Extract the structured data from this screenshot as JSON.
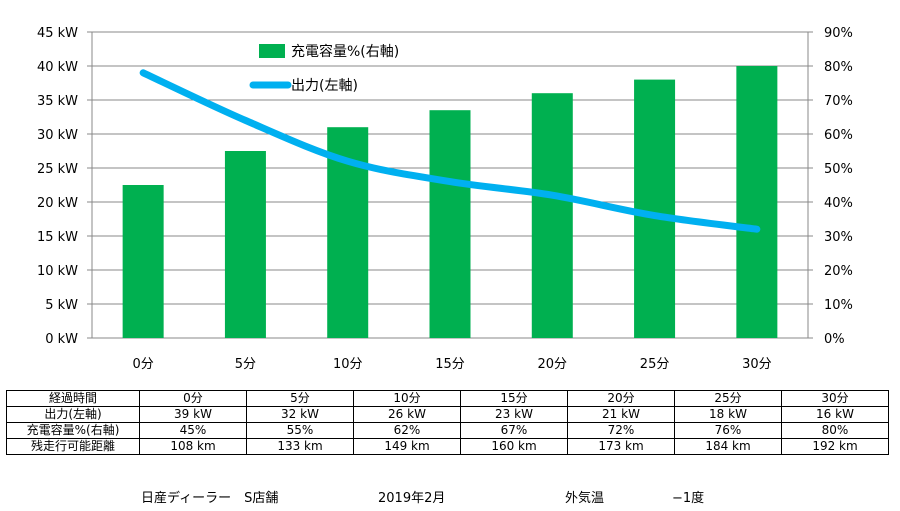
{
  "chart_data": {
    "type": "bar",
    "categories": [
      "0分",
      "5分",
      "10分",
      "15分",
      "20分",
      "25分",
      "30分"
    ],
    "series": [
      {
        "name": "充電容量%(右軸)",
        "type": "bar",
        "axis": "right",
        "values": [
          45,
          55,
          62,
          67,
          72,
          76,
          80
        ],
        "color": "#00b050"
      },
      {
        "name": "出力(左軸)",
        "type": "line",
        "axis": "left",
        "values": [
          39,
          32,
          26,
          23,
          21,
          18,
          16
        ],
        "color": "#00b0f0"
      }
    ],
    "left_axis": {
      "min": 0,
      "max": 45,
      "step": 5,
      "tick_labels": [
        "0 kW",
        "5 kW",
        "10 kW",
        "15 kW",
        "20 kW",
        "25 kW",
        "30 kW",
        "35 kW",
        "40 kW",
        "45 kW"
      ]
    },
    "right_axis": {
      "min": 0,
      "max": 90,
      "step": 10,
      "tick_labels": [
        "0%",
        "10%",
        "20%",
        "30%",
        "40%",
        "50%",
        "60%",
        "70%",
        "80%",
        "90%"
      ]
    },
    "grid": true,
    "legend_position": "top-center",
    "plot_background": "#ffffff"
  },
  "table": {
    "header_label": "経過時間",
    "columns": [
      "0分",
      "5分",
      "10分",
      "15分",
      "20分",
      "25分",
      "30分"
    ],
    "rows": [
      {
        "label": "出力(左軸)",
        "cells": [
          "39 kW",
          "32 kW",
          "26 kW",
          "23 kW",
          "21 kW",
          "18 kW",
          "16 kW"
        ]
      },
      {
        "label": "充電容量%(右軸)",
        "cells": [
          "45%",
          "55%",
          "62%",
          "67%",
          "72%",
          "76%",
          "80%"
        ]
      },
      {
        "label": "残走行可能距離",
        "cells": [
          "108 km",
          "133 km",
          "149 km",
          "160 km",
          "173 km",
          "184 km",
          "192 km"
        ]
      }
    ]
  },
  "footer": {
    "dealer": "日産ディーラー　S店舗",
    "date": "2019年2月",
    "temp_label": "外気温",
    "temp_value": "−1度"
  }
}
